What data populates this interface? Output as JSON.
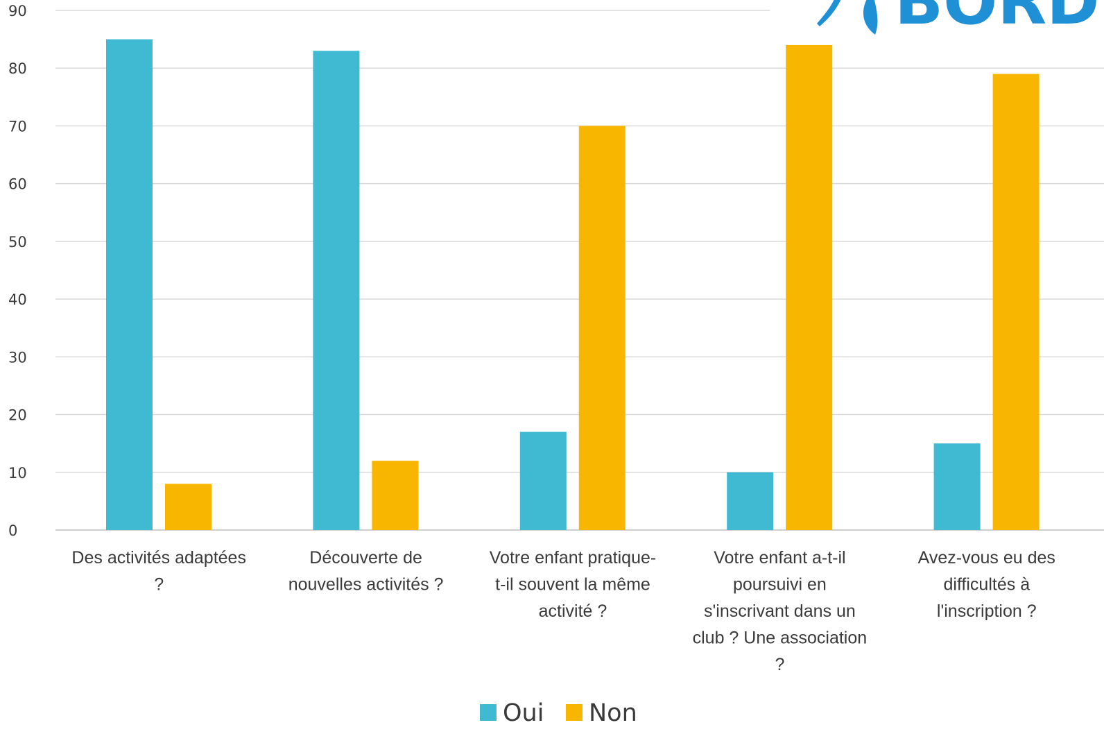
{
  "chart_data": {
    "type": "bar",
    "categories": [
      [
        "Des activités adaptées",
        "?"
      ],
      [
        "Découverte de",
        "nouvelles activités ?"
      ],
      [
        "Votre enfant pratique-",
        "t-il souvent la même",
        "activité ?"
      ],
      [
        "Votre enfant a-t-il",
        "poursuivi en",
        "s'inscrivant dans un",
        "club ? Une association",
        "?"
      ],
      [
        "Avez-vous eu des",
        "difficultés à",
        "l'inscription ?"
      ]
    ],
    "series": [
      {
        "name": "Oui",
        "color": "#40B9D3",
        "values": [
          85,
          83,
          17,
          10,
          15
        ]
      },
      {
        "name": "Non",
        "color": "#F8B600",
        "values": [
          8,
          12,
          70,
          84,
          79
        ]
      }
    ],
    "ylim": [
      0,
      90
    ],
    "yticks": [
      0,
      10,
      20,
      30,
      40,
      50,
      60,
      70,
      80,
      90
    ],
    "grid": true,
    "legend_position": "bottom",
    "title": "",
    "xlabel": "",
    "ylabel": ""
  },
  "logo": {
    "text": "BORDEA",
    "color": "#1f8fd6"
  }
}
